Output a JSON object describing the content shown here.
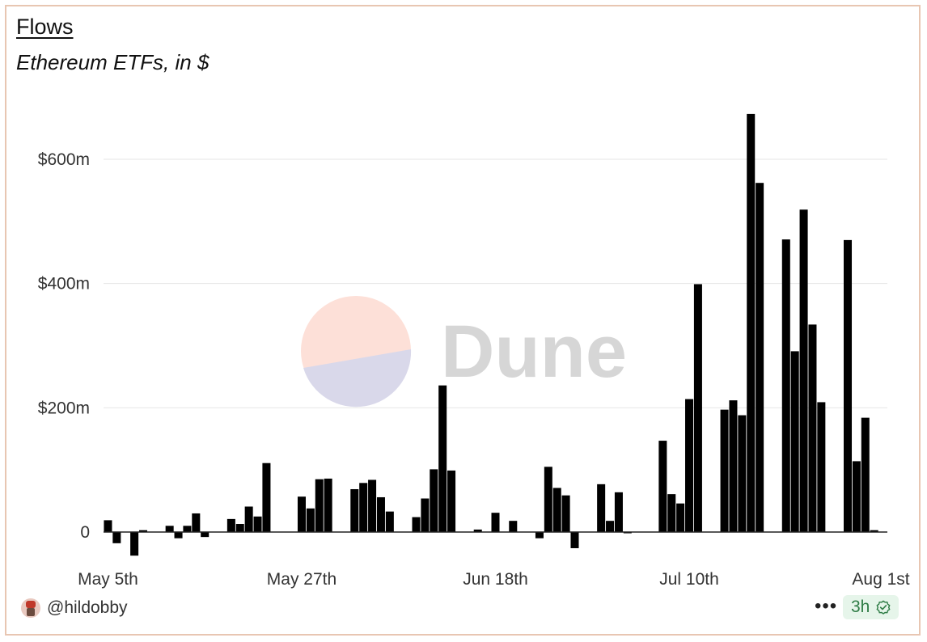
{
  "header": {
    "title": "Flows",
    "subtitle": "Ethereum ETFs, in $"
  },
  "watermark": {
    "text": "Dune"
  },
  "footer": {
    "user": "@hildobby",
    "more": "•••",
    "freshness": "3h"
  },
  "colors": {
    "bar": "#000000",
    "grid": "#e6e6e6",
    "border": "#e8c6b2",
    "badge_bg": "#e6f5ea",
    "badge_text": "#2f7d46",
    "logo_top": "#fde0d8",
    "logo_bottom": "#d9d8ea",
    "watermark": "#d6d6d6"
  },
  "icons": {
    "avatar": "user-avatar-icon",
    "verified": "check-badge-icon"
  },
  "chart_data": {
    "type": "bar",
    "y_ticks": [
      {
        "value": 0,
        "label": "0"
      },
      {
        "value": 200,
        "label": "$200m"
      },
      {
        "value": 400,
        "label": "$400m"
      },
      {
        "value": 600,
        "label": "$600m"
      }
    ],
    "x_ticks": [
      {
        "day": 0,
        "label": "May 5th"
      },
      {
        "day": 22,
        "label": "May 27th"
      },
      {
        "day": 44,
        "label": "Jun 18th"
      },
      {
        "day": 66,
        "label": "Jul 10th"
      },
      {
        "day": 88,
        "label": "Aug 1st"
      }
    ],
    "ylim": [
      -45,
      690
    ],
    "xlim": [
      -0.5,
      88.5
    ],
    "unit": "millions USD",
    "bars": [
      {
        "day": 0,
        "value": 19
      },
      {
        "day": 1,
        "value": -18
      },
      {
        "day": 3,
        "value": -38
      },
      {
        "day": 4,
        "value": 3
      },
      {
        "day": 7,
        "value": 10
      },
      {
        "day": 8,
        "value": -10
      },
      {
        "day": 9,
        "value": 10
      },
      {
        "day": 10,
        "value": 30
      },
      {
        "day": 11,
        "value": -8
      },
      {
        "day": 14,
        "value": 21
      },
      {
        "day": 15,
        "value": 13
      },
      {
        "day": 16,
        "value": 41
      },
      {
        "day": 17,
        "value": 25
      },
      {
        "day": 18,
        "value": 111
      },
      {
        "day": 22,
        "value": 57
      },
      {
        "day": 23,
        "value": 38
      },
      {
        "day": 24,
        "value": 85
      },
      {
        "day": 25,
        "value": 86
      },
      {
        "day": 28,
        "value": 69
      },
      {
        "day": 29,
        "value": 79
      },
      {
        "day": 30,
        "value": 84
      },
      {
        "day": 31,
        "value": 56
      },
      {
        "day": 32,
        "value": 33
      },
      {
        "day": 35,
        "value": 24
      },
      {
        "day": 36,
        "value": 54
      },
      {
        "day": 37,
        "value": 101
      },
      {
        "day": 38,
        "value": 236
      },
      {
        "day": 39,
        "value": 99
      },
      {
        "day": 42,
        "value": 4
      },
      {
        "day": 44,
        "value": 31
      },
      {
        "day": 46,
        "value": 18
      },
      {
        "day": 49,
        "value": -10
      },
      {
        "day": 50,
        "value": 105
      },
      {
        "day": 51,
        "value": 71
      },
      {
        "day": 52,
        "value": 59
      },
      {
        "day": 53,
        "value": -26
      },
      {
        "day": 56,
        "value": 77
      },
      {
        "day": 57,
        "value": 18
      },
      {
        "day": 58,
        "value": 64
      },
      {
        "day": 59,
        "value": -2
      },
      {
        "day": 63,
        "value": 147
      },
      {
        "day": 64,
        "value": 61
      },
      {
        "day": 65,
        "value": 46
      },
      {
        "day": 66,
        "value": 214
      },
      {
        "day": 67,
        "value": 399
      },
      {
        "day": 70,
        "value": 197
      },
      {
        "day": 71,
        "value": 212
      },
      {
        "day": 72,
        "value": 188
      },
      {
        "day": 73,
        "value": 673
      },
      {
        "day": 74,
        "value": 562
      },
      {
        "day": 77,
        "value": 471
      },
      {
        "day": 78,
        "value": 291
      },
      {
        "day": 79,
        "value": 519
      },
      {
        "day": 80,
        "value": 334
      },
      {
        "day": 81,
        "value": 209
      },
      {
        "day": 84,
        "value": 470
      },
      {
        "day": 85,
        "value": 114
      },
      {
        "day": 86,
        "value": 184
      },
      {
        "day": 87,
        "value": 3
      }
    ]
  }
}
